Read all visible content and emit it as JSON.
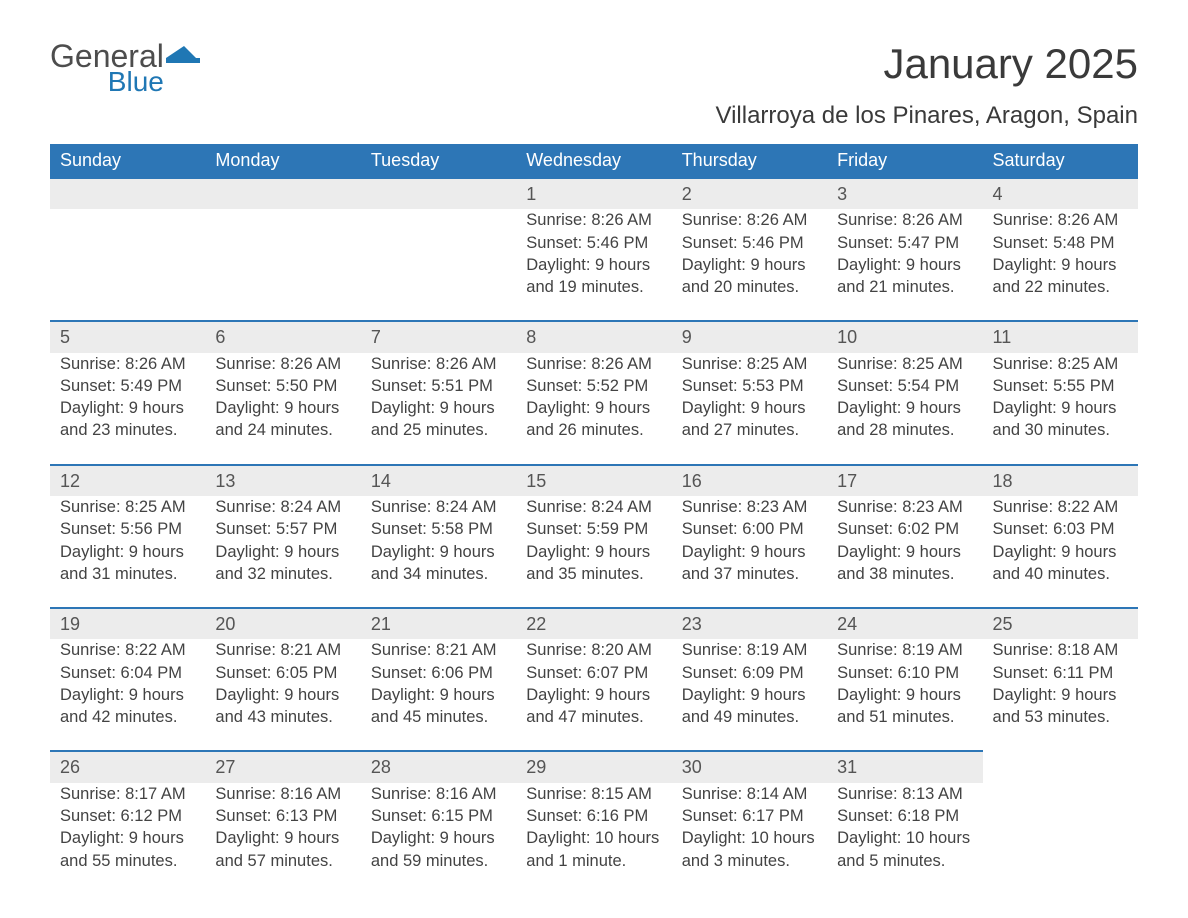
{
  "logo": {
    "word1": "General",
    "word2": "Blue",
    "color_gray": "#4d4d4d",
    "color_blue": "#1f77b4"
  },
  "title": "January 2025",
  "subtitle": "Villarroya de los Pinares, Aragon, Spain",
  "colors": {
    "header_bg": "#2d76b6",
    "header_text": "#ffffff",
    "daynum_bg": "#ececec",
    "border": "#2d76b6",
    "body_text": "#434343",
    "background": "#ffffff"
  },
  "typography": {
    "title_fontsize": 42,
    "subtitle_fontsize": 24,
    "header_fontsize": 18,
    "cell_fontsize": 16.5
  },
  "layout": {
    "columns": 7,
    "weeks": 5
  },
  "daysOfWeek": [
    "Sunday",
    "Monday",
    "Tuesday",
    "Wednesday",
    "Thursday",
    "Friday",
    "Saturday"
  ],
  "weeks": [
    [
      null,
      null,
      null,
      {
        "n": "1",
        "sr": "Sunrise: 8:26 AM",
        "ss": "Sunset: 5:46 PM",
        "d1": "Daylight: 9 hours",
        "d2": "and 19 minutes."
      },
      {
        "n": "2",
        "sr": "Sunrise: 8:26 AM",
        "ss": "Sunset: 5:46 PM",
        "d1": "Daylight: 9 hours",
        "d2": "and 20 minutes."
      },
      {
        "n": "3",
        "sr": "Sunrise: 8:26 AM",
        "ss": "Sunset: 5:47 PM",
        "d1": "Daylight: 9 hours",
        "d2": "and 21 minutes."
      },
      {
        "n": "4",
        "sr": "Sunrise: 8:26 AM",
        "ss": "Sunset: 5:48 PM",
        "d1": "Daylight: 9 hours",
        "d2": "and 22 minutes."
      }
    ],
    [
      {
        "n": "5",
        "sr": "Sunrise: 8:26 AM",
        "ss": "Sunset: 5:49 PM",
        "d1": "Daylight: 9 hours",
        "d2": "and 23 minutes."
      },
      {
        "n": "6",
        "sr": "Sunrise: 8:26 AM",
        "ss": "Sunset: 5:50 PM",
        "d1": "Daylight: 9 hours",
        "d2": "and 24 minutes."
      },
      {
        "n": "7",
        "sr": "Sunrise: 8:26 AM",
        "ss": "Sunset: 5:51 PM",
        "d1": "Daylight: 9 hours",
        "d2": "and 25 minutes."
      },
      {
        "n": "8",
        "sr": "Sunrise: 8:26 AM",
        "ss": "Sunset: 5:52 PM",
        "d1": "Daylight: 9 hours",
        "d2": "and 26 minutes."
      },
      {
        "n": "9",
        "sr": "Sunrise: 8:25 AM",
        "ss": "Sunset: 5:53 PM",
        "d1": "Daylight: 9 hours",
        "d2": "and 27 minutes."
      },
      {
        "n": "10",
        "sr": "Sunrise: 8:25 AM",
        "ss": "Sunset: 5:54 PM",
        "d1": "Daylight: 9 hours",
        "d2": "and 28 minutes."
      },
      {
        "n": "11",
        "sr": "Sunrise: 8:25 AM",
        "ss": "Sunset: 5:55 PM",
        "d1": "Daylight: 9 hours",
        "d2": "and 30 minutes."
      }
    ],
    [
      {
        "n": "12",
        "sr": "Sunrise: 8:25 AM",
        "ss": "Sunset: 5:56 PM",
        "d1": "Daylight: 9 hours",
        "d2": "and 31 minutes."
      },
      {
        "n": "13",
        "sr": "Sunrise: 8:24 AM",
        "ss": "Sunset: 5:57 PM",
        "d1": "Daylight: 9 hours",
        "d2": "and 32 minutes."
      },
      {
        "n": "14",
        "sr": "Sunrise: 8:24 AM",
        "ss": "Sunset: 5:58 PM",
        "d1": "Daylight: 9 hours",
        "d2": "and 34 minutes."
      },
      {
        "n": "15",
        "sr": "Sunrise: 8:24 AM",
        "ss": "Sunset: 5:59 PM",
        "d1": "Daylight: 9 hours",
        "d2": "and 35 minutes."
      },
      {
        "n": "16",
        "sr": "Sunrise: 8:23 AM",
        "ss": "Sunset: 6:00 PM",
        "d1": "Daylight: 9 hours",
        "d2": "and 37 minutes."
      },
      {
        "n": "17",
        "sr": "Sunrise: 8:23 AM",
        "ss": "Sunset: 6:02 PM",
        "d1": "Daylight: 9 hours",
        "d2": "and 38 minutes."
      },
      {
        "n": "18",
        "sr": "Sunrise: 8:22 AM",
        "ss": "Sunset: 6:03 PM",
        "d1": "Daylight: 9 hours",
        "d2": "and 40 minutes."
      }
    ],
    [
      {
        "n": "19",
        "sr": "Sunrise: 8:22 AM",
        "ss": "Sunset: 6:04 PM",
        "d1": "Daylight: 9 hours",
        "d2": "and 42 minutes."
      },
      {
        "n": "20",
        "sr": "Sunrise: 8:21 AM",
        "ss": "Sunset: 6:05 PM",
        "d1": "Daylight: 9 hours",
        "d2": "and 43 minutes."
      },
      {
        "n": "21",
        "sr": "Sunrise: 8:21 AM",
        "ss": "Sunset: 6:06 PM",
        "d1": "Daylight: 9 hours",
        "d2": "and 45 minutes."
      },
      {
        "n": "22",
        "sr": "Sunrise: 8:20 AM",
        "ss": "Sunset: 6:07 PM",
        "d1": "Daylight: 9 hours",
        "d2": "and 47 minutes."
      },
      {
        "n": "23",
        "sr": "Sunrise: 8:19 AM",
        "ss": "Sunset: 6:09 PM",
        "d1": "Daylight: 9 hours",
        "d2": "and 49 minutes."
      },
      {
        "n": "24",
        "sr": "Sunrise: 8:19 AM",
        "ss": "Sunset: 6:10 PM",
        "d1": "Daylight: 9 hours",
        "d2": "and 51 minutes."
      },
      {
        "n": "25",
        "sr": "Sunrise: 8:18 AM",
        "ss": "Sunset: 6:11 PM",
        "d1": "Daylight: 9 hours",
        "d2": "and 53 minutes."
      }
    ],
    [
      {
        "n": "26",
        "sr": "Sunrise: 8:17 AM",
        "ss": "Sunset: 6:12 PM",
        "d1": "Daylight: 9 hours",
        "d2": "and 55 minutes."
      },
      {
        "n": "27",
        "sr": "Sunrise: 8:16 AM",
        "ss": "Sunset: 6:13 PM",
        "d1": "Daylight: 9 hours",
        "d2": "and 57 minutes."
      },
      {
        "n": "28",
        "sr": "Sunrise: 8:16 AM",
        "ss": "Sunset: 6:15 PM",
        "d1": "Daylight: 9 hours",
        "d2": "and 59 minutes."
      },
      {
        "n": "29",
        "sr": "Sunrise: 8:15 AM",
        "ss": "Sunset: 6:16 PM",
        "d1": "Daylight: 10 hours",
        "d2": "and 1 minute."
      },
      {
        "n": "30",
        "sr": "Sunrise: 8:14 AM",
        "ss": "Sunset: 6:17 PM",
        "d1": "Daylight: 10 hours",
        "d2": "and 3 minutes."
      },
      {
        "n": "31",
        "sr": "Sunrise: 8:13 AM",
        "ss": "Sunset: 6:18 PM",
        "d1": "Daylight: 10 hours",
        "d2": "and 5 minutes."
      },
      null
    ]
  ]
}
